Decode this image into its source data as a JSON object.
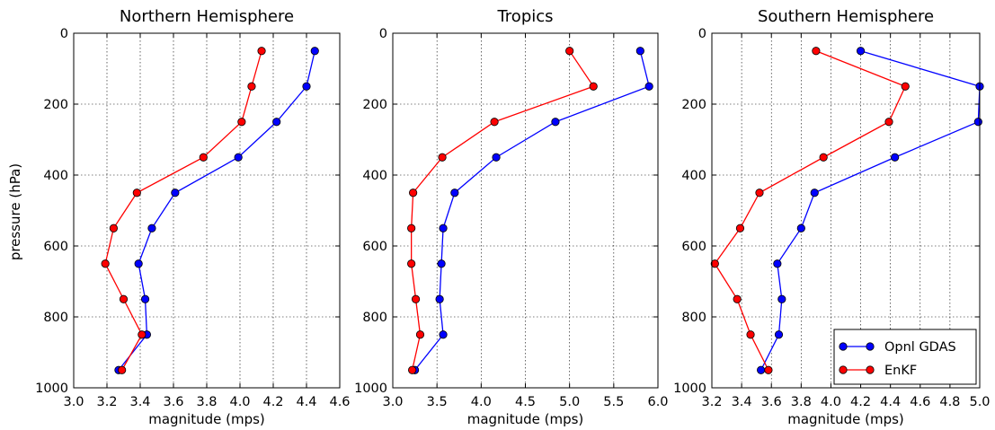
{
  "figure": {
    "ylabel": "pressure (hPa)"
  },
  "legend": {
    "placement": "lower-right",
    "panel": 2,
    "entries": [
      "Opnl GDAS",
      "EnKF"
    ]
  },
  "series_colors": {
    "Opnl GDAS": "#0000ff",
    "EnKF": "#ff0000"
  },
  "chart_data": [
    {
      "type": "line",
      "title": "Northern Hemisphere",
      "xlabel": "magnitude (mps)",
      "ylabel": "pressure (hPa)",
      "xlim": [
        3.0,
        4.6
      ],
      "ylim": [
        1000,
        0
      ],
      "y_inverted": true,
      "xticks": [
        "3.0",
        "3.2",
        "3.4",
        "3.6",
        "3.8",
        "4.0",
        "4.2",
        "4.4",
        "4.6"
      ],
      "yticks": [
        "0",
        "200",
        "400",
        "600",
        "800",
        "1000"
      ],
      "grid": true,
      "y": [
        50,
        150,
        250,
        350,
        450,
        550,
        650,
        750,
        850,
        950
      ],
      "series": [
        {
          "name": "Opnl GDAS",
          "values": [
            4.45,
            4.4,
            4.22,
            3.99,
            3.61,
            3.47,
            3.39,
            3.43,
            3.44,
            3.27
          ]
        },
        {
          "name": "EnKF",
          "values": [
            4.13,
            4.07,
            4.01,
            3.78,
            3.38,
            3.24,
            3.19,
            3.3,
            3.41,
            3.29
          ]
        }
      ]
    },
    {
      "type": "line",
      "title": "Tropics",
      "xlabel": "magnitude (mps)",
      "xlim": [
        3.0,
        6.0
      ],
      "ylim": [
        1000,
        0
      ],
      "y_inverted": true,
      "xticks": [
        "3.0",
        "3.5",
        "4.0",
        "4.5",
        "5.0",
        "5.5",
        "6.0"
      ],
      "yticks": [
        "0",
        "200",
        "400",
        "600",
        "800",
        "1000"
      ],
      "grid": true,
      "y": [
        50,
        150,
        250,
        350,
        450,
        550,
        650,
        750,
        850,
        950
      ],
      "series": [
        {
          "name": "Opnl GDAS",
          "values": [
            5.8,
            5.9,
            4.84,
            4.17,
            3.7,
            3.57,
            3.55,
            3.53,
            3.57,
            3.25
          ]
        },
        {
          "name": "EnKF",
          "values": [
            5.0,
            5.27,
            4.15,
            3.56,
            3.23,
            3.21,
            3.21,
            3.26,
            3.31,
            3.22
          ]
        }
      ]
    },
    {
      "type": "line",
      "title": "Southern Hemisphere",
      "xlabel": "magnitude (mps)",
      "xlim": [
        3.2,
        5.0
      ],
      "ylim": [
        1000,
        0
      ],
      "y_inverted": true,
      "xticks": [
        "3.2",
        "3.4",
        "3.6",
        "3.8",
        "4.0",
        "4.2",
        "4.4",
        "4.6",
        "4.8",
        "5.0"
      ],
      "yticks": [
        "0",
        "200",
        "400",
        "600",
        "800",
        "1000"
      ],
      "grid": true,
      "y": [
        50,
        150,
        250,
        350,
        450,
        550,
        650,
        750,
        850,
        950
      ],
      "series": [
        {
          "name": "Opnl GDAS",
          "values": [
            4.2,
            5.0,
            4.99,
            4.43,
            3.89,
            3.8,
            3.64,
            3.67,
            3.65,
            3.53
          ]
        },
        {
          "name": "EnKF",
          "values": [
            3.9,
            4.5,
            4.39,
            3.95,
            3.52,
            3.39,
            3.22,
            3.37,
            3.46,
            3.58
          ]
        }
      ]
    }
  ]
}
